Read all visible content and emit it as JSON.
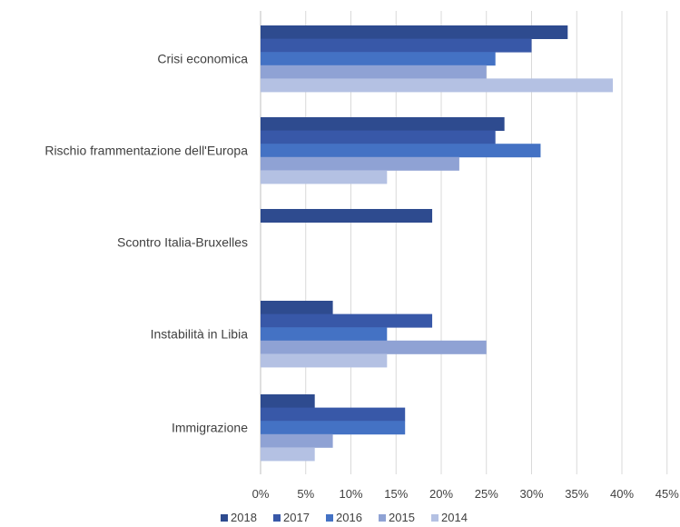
{
  "chart_data": {
    "type": "bar",
    "orientation": "horizontal",
    "title": "",
    "xlabel": "",
    "ylabel": "",
    "categories": [
      "Crisi economica",
      "Rischio frammentazione dell'Europa",
      "Scontro Italia-Bruxelles",
      "Instabilità in Libia",
      "Immigrazione"
    ],
    "series": [
      {
        "name": "2018",
        "color": "#2e4b8f",
        "values": [
          34,
          27,
          19,
          8,
          6
        ]
      },
      {
        "name": "2017",
        "color": "#3858a8",
        "values": [
          30,
          26,
          null,
          19,
          16
        ]
      },
      {
        "name": "2016",
        "color": "#4472c4",
        "values": [
          26,
          31,
          null,
          14,
          16
        ]
      },
      {
        "name": "2015",
        "color": "#8fa2d4",
        "values": [
          25,
          22,
          null,
          25,
          8
        ]
      },
      {
        "name": "2014",
        "color": "#b4c1e3",
        "values": [
          39,
          14,
          null,
          14,
          6
        ]
      }
    ],
    "xlim": [
      0,
      45
    ],
    "x_ticks": [
      0,
      5,
      10,
      15,
      20,
      25,
      30,
      35,
      40,
      45
    ],
    "x_tick_labels": [
      "0%",
      "5%",
      "10%",
      "15%",
      "20%",
      "25%",
      "30%",
      "35%",
      "40%",
      "45%"
    ],
    "grid": true,
    "legend_position": "bottom"
  }
}
